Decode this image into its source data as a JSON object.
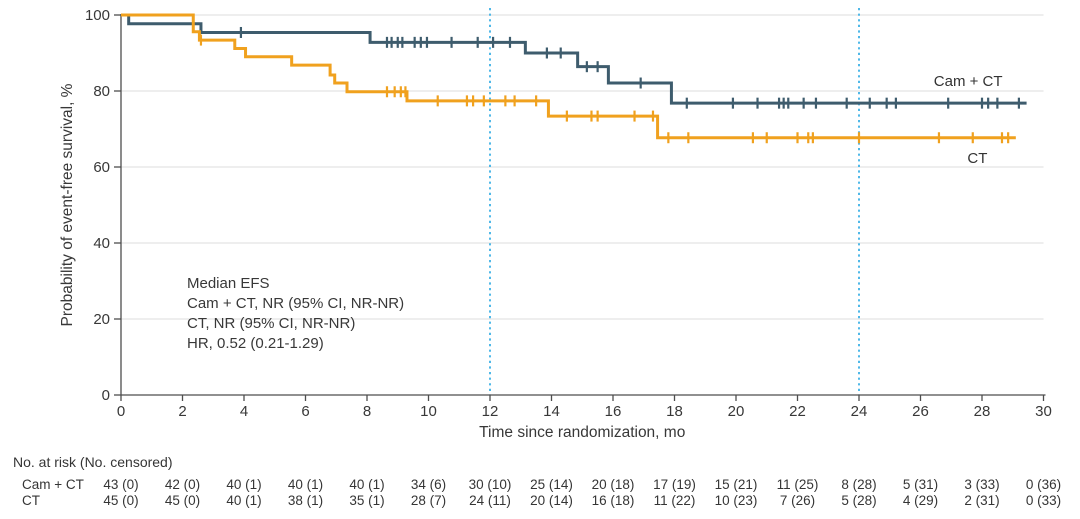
{
  "figure_colors": {
    "camct_line": "#3E5C6D",
    "ct_line": "#F0A11E",
    "reference_line": "#4FB8E8",
    "gridline": "#E4E4E4",
    "axis": "#4D4D4D",
    "text": "#383838"
  },
  "chart_data": {
    "type": "line",
    "subtype": "kaplan-meier-step",
    "title": "",
    "xlabel": "Time since randomization, mo",
    "ylabel": "Probability of event-free survival, %",
    "xlim": [
      0,
      30
    ],
    "ylim": [
      0,
      100
    ],
    "x_ticks": [
      0,
      2,
      4,
      6,
      8,
      10,
      12,
      14,
      16,
      18,
      20,
      22,
      24,
      26,
      28,
      30
    ],
    "y_ticks": [
      0,
      20,
      40,
      60,
      80,
      100
    ],
    "grid": "horizontal-only",
    "reference_lines_x": [
      12,
      24
    ],
    "annotation": {
      "lines": [
        "Median EFS",
        "Cam + CT, NR (95% CI, NR-NR)",
        "CT, NR (95% CI, NR-NR)",
        "HR, 0.52 (0.21-1.29)"
      ]
    },
    "series": [
      {
        "name": "Cam + CT",
        "color": "#3E5C6D",
        "label_x_mo": 27.55,
        "label_y_pct": 81.3,
        "label_anchor": "middle",
        "end_x": 29.45,
        "steps": [
          [
            0,
            100
          ],
          [
            0.25,
            97.7
          ],
          [
            2.6,
            95.4
          ],
          [
            8.1,
            92.8
          ],
          [
            13.15,
            90.0
          ],
          [
            14.85,
            86.4
          ],
          [
            15.85,
            82.1
          ],
          [
            17.9,
            76.8
          ]
        ],
        "censors": [
          [
            3.9,
            95.4
          ],
          [
            8.65,
            92.8
          ],
          [
            8.8,
            92.8
          ],
          [
            9.0,
            92.8
          ],
          [
            9.15,
            92.8
          ],
          [
            9.55,
            92.8
          ],
          [
            9.75,
            92.8
          ],
          [
            9.95,
            92.8
          ],
          [
            10.75,
            92.8
          ],
          [
            11.6,
            92.8
          ],
          [
            12.1,
            92.8
          ],
          [
            12.65,
            92.8
          ],
          [
            13.85,
            90.0
          ],
          [
            14.3,
            90.0
          ],
          [
            15.15,
            86.4
          ],
          [
            15.5,
            86.4
          ],
          [
            16.9,
            82.1
          ],
          [
            18.4,
            76.8
          ],
          [
            19.9,
            76.8
          ],
          [
            20.7,
            76.8
          ],
          [
            21.4,
            76.8
          ],
          [
            21.55,
            76.8
          ],
          [
            21.7,
            76.8
          ],
          [
            22.2,
            76.8
          ],
          [
            22.6,
            76.8
          ],
          [
            23.6,
            76.8
          ],
          [
            24.35,
            76.8
          ],
          [
            24.9,
            76.8
          ],
          [
            25.2,
            76.8
          ],
          [
            26.9,
            76.8
          ],
          [
            28.0,
            76.8
          ],
          [
            28.2,
            76.8
          ],
          [
            28.5,
            76.8
          ],
          [
            29.2,
            76.8
          ]
        ]
      },
      {
        "name": "CT",
        "color": "#F0A11E",
        "label_x_mo": 27.85,
        "label_y_pct": 61.1,
        "label_anchor": "middle",
        "end_x": 29.1,
        "steps": [
          [
            0,
            100
          ],
          [
            2.35,
            95.6
          ],
          [
            2.55,
            93.4
          ],
          [
            3.7,
            91.2
          ],
          [
            4.05,
            89.0
          ],
          [
            5.55,
            86.8
          ],
          [
            6.8,
            84.2
          ],
          [
            6.95,
            82.1
          ],
          [
            7.35,
            79.8
          ],
          [
            9.3,
            77.4
          ],
          [
            13.9,
            73.4
          ],
          [
            17.45,
            67.7
          ]
        ],
        "censors": [
          [
            2.6,
            93.4
          ],
          [
            8.65,
            79.8
          ],
          [
            8.9,
            79.8
          ],
          [
            9.1,
            79.8
          ],
          [
            9.25,
            79.8
          ],
          [
            10.3,
            77.4
          ],
          [
            11.25,
            77.4
          ],
          [
            11.45,
            77.4
          ],
          [
            11.8,
            77.4
          ],
          [
            12.5,
            77.4
          ],
          [
            12.8,
            77.4
          ],
          [
            13.5,
            77.4
          ],
          [
            14.5,
            73.4
          ],
          [
            15.3,
            73.4
          ],
          [
            15.5,
            73.4
          ],
          [
            16.7,
            73.4
          ],
          [
            17.3,
            73.4
          ],
          [
            17.8,
            67.7
          ],
          [
            18.45,
            67.7
          ],
          [
            20.55,
            67.7
          ],
          [
            21.0,
            67.7
          ],
          [
            22.0,
            67.7
          ],
          [
            22.35,
            67.7
          ],
          [
            22.5,
            67.7
          ],
          [
            24.0,
            67.7
          ],
          [
            26.6,
            67.7
          ],
          [
            27.7,
            67.7
          ],
          [
            28.65,
            67.7
          ],
          [
            28.85,
            67.7
          ]
        ]
      }
    ]
  },
  "risk_table": {
    "header": "No. at risk (No. censored)",
    "time_points": [
      0,
      2,
      4,
      6,
      8,
      10,
      12,
      14,
      16,
      18,
      20,
      22,
      24,
      26,
      28,
      30
    ],
    "rows": [
      {
        "label": "Cam + CT",
        "values": [
          "43 (0)",
          "42 (0)",
          "40 (1)",
          "40 (1)",
          "40 (1)",
          "34 (6)",
          "30 (10)",
          "25 (14)",
          "20 (18)",
          "17 (19)",
          "15 (21)",
          "11 (25)",
          "8 (28)",
          "5 (31)",
          "3 (33)",
          "0 (36)"
        ]
      },
      {
        "label": "CT",
        "values": [
          "45 (0)",
          "45 (0)",
          "40 (1)",
          "38 (1)",
          "35 (1)",
          "28 (7)",
          "24 (11)",
          "20 (14)",
          "16 (18)",
          "11 (22)",
          "10 (23)",
          "7 (26)",
          "5 (28)",
          "4 (29)",
          "2 (31)",
          "0 (33)"
        ]
      }
    ]
  }
}
